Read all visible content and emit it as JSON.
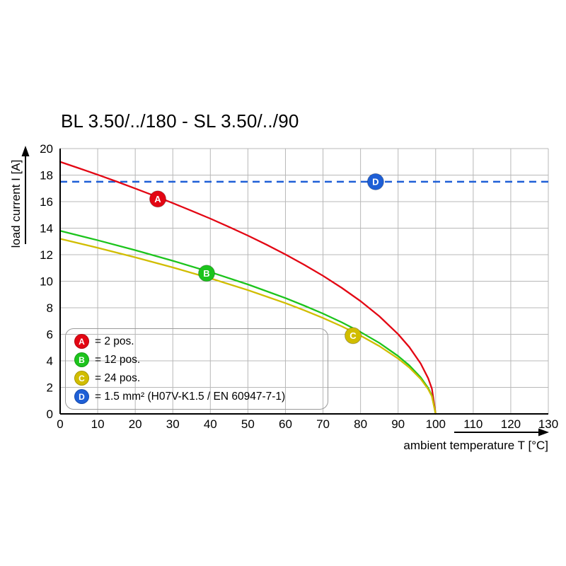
{
  "title": "BL 3.50/../180 - SL 3.50/../90",
  "chart_data": {
    "type": "line",
    "title": "BL 3.50/../180 - SL 3.50/../90",
    "xlabel": "ambient temperature T [°C]",
    "ylabel": "load current I [A]",
    "xlim": [
      0,
      130
    ],
    "ylim": [
      0,
      20
    ],
    "x_tick_step": 10,
    "y_tick_step": 2,
    "grid": true,
    "legend_position": "bottom-left-inside",
    "series": [
      {
        "name": "2 pos.",
        "letter": "A",
        "color": "#e30613",
        "points": [
          [
            0,
            19
          ],
          [
            5,
            18.52
          ],
          [
            10,
            18.03
          ],
          [
            15,
            17.52
          ],
          [
            20,
            16.99
          ],
          [
            25,
            16.45
          ],
          [
            30,
            15.89
          ],
          [
            35,
            15.31
          ],
          [
            40,
            14.72
          ],
          [
            45,
            14.09
          ],
          [
            50,
            13.44
          ],
          [
            55,
            12.75
          ],
          [
            60,
            12.02
          ],
          [
            65,
            11.24
          ],
          [
            70,
            10.41
          ],
          [
            75,
            9.5
          ],
          [
            80,
            8.5
          ],
          [
            85,
            7.36
          ],
          [
            90,
            6.01
          ],
          [
            93,
            5.03
          ],
          [
            96,
            3.8
          ],
          [
            98,
            2.69
          ],
          [
            99,
            1.9
          ],
          [
            100,
            0
          ]
        ]
      },
      {
        "name": "12 pos.",
        "letter": "B",
        "color": "#1cc41c",
        "points": [
          [
            0,
            13.8
          ],
          [
            10,
            13.09
          ],
          [
            20,
            12.34
          ],
          [
            30,
            11.54
          ],
          [
            40,
            10.69
          ],
          [
            50,
            9.76
          ],
          [
            60,
            8.73
          ],
          [
            65,
            8.16
          ],
          [
            70,
            7.56
          ],
          [
            75,
            6.9
          ],
          [
            80,
            6.17
          ],
          [
            85,
            5.35
          ],
          [
            90,
            4.36
          ],
          [
            93,
            3.65
          ],
          [
            96,
            2.76
          ],
          [
            98,
            1.95
          ],
          [
            99,
            1.38
          ],
          [
            100,
            0
          ]
        ]
      },
      {
        "name": "24 pos.",
        "letter": "C",
        "color": "#d1bd00",
        "points": [
          [
            0,
            13.2
          ],
          [
            10,
            12.52
          ],
          [
            20,
            11.8
          ],
          [
            30,
            11.04
          ],
          [
            40,
            10.22
          ],
          [
            50,
            9.33
          ],
          [
            60,
            8.35
          ],
          [
            65,
            7.81
          ],
          [
            70,
            7.23
          ],
          [
            75,
            6.6
          ],
          [
            80,
            5.9
          ],
          [
            85,
            5.11
          ],
          [
            90,
            4.17
          ],
          [
            93,
            3.49
          ],
          [
            96,
            2.64
          ],
          [
            98,
            1.87
          ],
          [
            99,
            1.32
          ],
          [
            100,
            0
          ]
        ]
      }
    ],
    "reference_line": {
      "name": "1.5 mm² (H07V-K1.5 / EN 60947-7-1)",
      "letter": "D",
      "color": "#1e5fd6",
      "y": 17.5,
      "style": "dashed"
    },
    "markers": [
      {
        "letter": "A",
        "x": 26,
        "y": 16.2,
        "color": "#e30613"
      },
      {
        "letter": "B",
        "x": 39,
        "y": 10.6,
        "color": "#1cc41c"
      },
      {
        "letter": "C",
        "x": 78,
        "y": 5.9,
        "color": "#d1bd00"
      },
      {
        "letter": "D",
        "x": 84,
        "y": 17.5,
        "color": "#1e5fd6"
      }
    ],
    "legend": [
      {
        "letter": "A",
        "label": "= 2 pos.",
        "color": "#e30613"
      },
      {
        "letter": "B",
        "label": "= 12 pos.",
        "color": "#1cc41c"
      },
      {
        "letter": "C",
        "label": "= 24 pos.",
        "color": "#d1bd00"
      },
      {
        "letter": "D",
        "label": "= 1.5 mm² (H07V-K1.5 / EN 60947-7-1)",
        "color": "#1e5fd6"
      }
    ]
  },
  "axis_colors": {
    "grid": "#b8b8b8",
    "axis": "#000000"
  }
}
